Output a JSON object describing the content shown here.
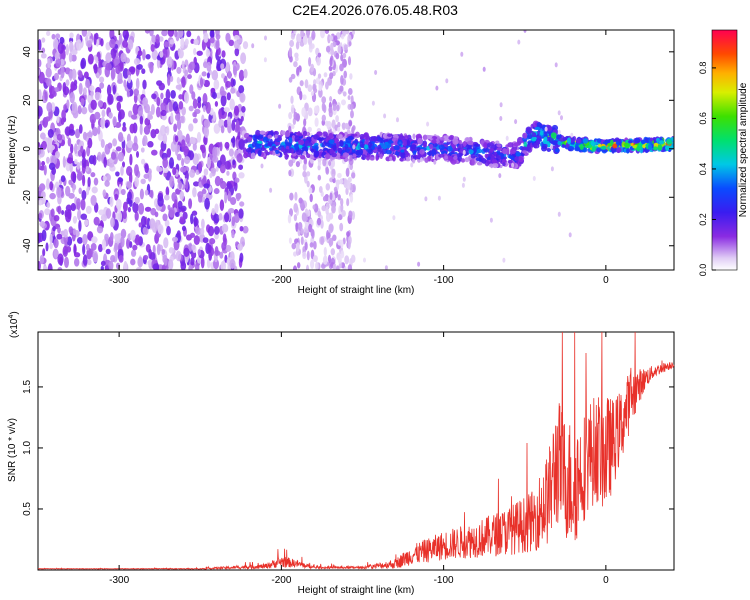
{
  "title": "C2E4.2026.076.05.48.R03",
  "colors": {
    "snr_line": "#e8312a",
    "axis": "#000000",
    "background": "#ffffff"
  },
  "chart_data": [
    {
      "type": "heatmap",
      "xlabel": "Height of straight line (km)",
      "ylabel": "Frequency (Hz)",
      "xlim": [
        -350,
        42
      ],
      "ylim": [
        -50,
        49
      ],
      "xticks": [
        -300,
        -200,
        -100,
        0
      ],
      "xtick_labels": [
        "-300",
        "-200",
        "-100",
        "0"
      ],
      "yticks": [
        40,
        20,
        0,
        -20,
        -40
      ],
      "ytick_labels": [
        "40",
        "20",
        "0",
        "-20",
        "-40"
      ],
      "signal_track": [
        {
          "x": -220,
          "freq": 2,
          "amp": 0.45
        },
        {
          "x": -150,
          "freq": 1,
          "amp": 0.4
        },
        {
          "x": -100,
          "freq": 0,
          "amp": 0.38
        },
        {
          "x": -55,
          "freq": -3,
          "amp": 0.35
        },
        {
          "x": -45,
          "freq": 6,
          "amp": 0.55
        },
        {
          "x": -20,
          "freq": 2,
          "amp": 0.7
        },
        {
          "x": 0,
          "freq": 1,
          "amp": 0.85
        },
        {
          "x": 40,
          "freq": 2,
          "amp": 0.9
        }
      ],
      "colorbar": {
        "label": "Normalized spectral amplitude",
        "range": [
          0,
          0.95
        ],
        "ticks": [
          0.0,
          0.2,
          0.4,
          0.6,
          0.8
        ],
        "tick_labels": [
          "0.0",
          "0.2",
          "0.4",
          "0.6",
          "0.8"
        ]
      }
    },
    {
      "type": "line",
      "xlabel": "Height of straight line (km)",
      "ylabel": "SNR (10 * v/v)",
      "y_multiplier": "(x10^4)",
      "multiplier_base": "(x10",
      "multiplier_exp": "4",
      "multiplier_close": ")",
      "xlim": [
        -350,
        42
      ],
      "ylim": [
        0,
        1.95
      ],
      "xticks": [
        -300,
        -200,
        -100,
        0
      ],
      "xtick_labels": [
        "-300",
        "-200",
        "-100",
        "0"
      ],
      "yticks": [
        0.5,
        1.0,
        1.5
      ],
      "ytick_labels": [
        "0.5",
        "1.0",
        "1.5"
      ],
      "series": [
        {
          "name": "SNR",
          "x": [
            -350,
            -300,
            -250,
            -210,
            -200,
            -190,
            -180,
            -150,
            -130,
            -120,
            -100,
            -80,
            -60,
            -45,
            -35,
            -30,
            -25,
            -20,
            -15,
            -10,
            -5,
            0,
            5,
            10,
            15,
            20,
            25,
            30,
            42
          ],
          "values": [
            0.01,
            0.01,
            0.01,
            0.03,
            0.07,
            0.05,
            0.02,
            0.02,
            0.05,
            0.12,
            0.2,
            0.25,
            0.32,
            0.4,
            0.6,
            0.9,
            0.75,
            0.7,
            0.8,
            0.95,
            1.0,
            0.95,
            1.05,
            1.2,
            1.4,
            1.5,
            1.58,
            1.63,
            1.69
          ],
          "noise": [
            0.002,
            0.002,
            0.003,
            0.02,
            0.05,
            0.03,
            0.01,
            0.01,
            0.04,
            0.08,
            0.12,
            0.15,
            0.2,
            0.25,
            0.4,
            0.55,
            0.5,
            0.55,
            0.45,
            0.45,
            0.45,
            0.5,
            0.35,
            0.3,
            0.25,
            0.15,
            0.08,
            0.05,
            0.03
          ]
        }
      ]
    }
  ]
}
